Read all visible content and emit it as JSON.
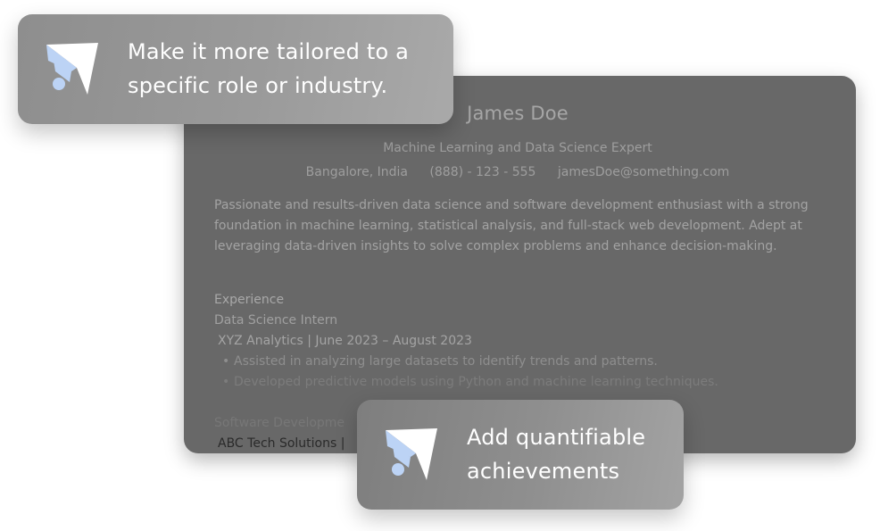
{
  "resume": {
    "name": "James Doe",
    "title": "Machine Learning and Data Science Expert",
    "location": "Bangalore, India",
    "phone": "(888) - 123 - 555",
    "email": "jamesDoe@something.com",
    "summary": "Passionate and results-driven data science and software development enthusiast with a strong foundation in machine learning, statistical analysis, and full-stack web development. Adept at leveraging data-driven insights to solve complex problems and enhance decision-making.",
    "experience_heading": "Experience",
    "experience": [
      {
        "role": "Data Science Intern",
        "company_dates": "XYZ Analytics | June 2023 – August 2023",
        "bullets": [
          "Assisted in analyzing large datasets to identify trends and patterns.",
          "Developed predictive models using Python and machine learning techniques."
        ]
      },
      {
        "role": "Software Developme",
        "company_dates": "ABC Tech Solutions |"
      }
    ]
  },
  "tips": [
    {
      "icon": "send-icon",
      "text_line1": "Make it more tailored to a",
      "text_line2": "specific role or industry."
    },
    {
      "icon": "send-icon",
      "text_line1": "Add quantifiable",
      "text_line2": "achievements"
    }
  ],
  "colors": {
    "resume_bg": "#686868",
    "icon_dark": "#ffffff",
    "icon_light": "#bcd3f5",
    "tip_text": "#ffffff"
  }
}
